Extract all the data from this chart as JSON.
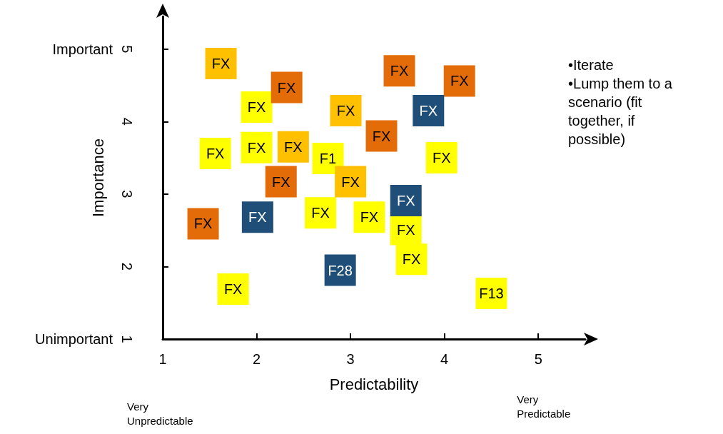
{
  "chart_data": {
    "type": "scatter",
    "xlabel": "Predictability",
    "ylabel": "Importance",
    "xlim": [
      1,
      5.5
    ],
    "ylim": [
      1,
      5.45
    ],
    "xticks": [
      1,
      2,
      3,
      4,
      5
    ],
    "yticks": [
      1,
      2,
      3,
      4,
      5
    ],
    "grid": false,
    "marker": "square",
    "series": [
      {
        "color": "#ffff00",
        "x": [
          2.0,
          3.97,
          1.56,
          2.0,
          2.76,
          2.68,
          3.2,
          3.59,
          3.65,
          1.75,
          4.5
        ],
        "values": [
          4.2,
          3.5,
          3.56,
          3.64,
          3.49,
          2.74,
          2.68,
          2.51,
          2.1,
          1.69,
          1.63
        ],
        "value_labels": [
          "FX",
          "FX",
          "FX",
          "FX",
          "F1",
          "FX",
          "FX",
          "FX",
          "FX",
          "FX",
          "F13"
        ]
      },
      {
        "color": "#ffc000",
        "x": [
          1.62,
          2.95,
          2.39,
          3.0
        ],
        "values": [
          4.8,
          4.15,
          3.65,
          3.17
        ],
        "value_labels": [
          "FX",
          "FX",
          "FX",
          "FX"
        ]
      },
      {
        "color": "#e36c09",
        "x": [
          2.32,
          3.52,
          4.16,
          3.33,
          2.26,
          1.43
        ],
        "values": [
          4.47,
          4.7,
          4.56,
          3.8,
          3.17,
          2.59
        ],
        "value_labels": [
          "FX",
          "FX",
          "FX",
          "FX",
          "FX",
          "FX"
        ]
      },
      {
        "color": "#1f4e79",
        "x": [
          3.83,
          3.59,
          2.01,
          2.89
        ],
        "values": [
          4.15,
          2.91,
          2.68,
          1.95
        ],
        "value_labels": [
          "FX",
          "FX",
          "FX",
          "F28"
        ]
      }
    ],
    "annotations": [
      "Important",
      "Unimportant",
      "Very\nUnpredictable",
      "Very\nPredictable",
      "•Iterate\n•Lump them to a\nscenario (fit\ntogether, if\npossible)"
    ]
  }
}
